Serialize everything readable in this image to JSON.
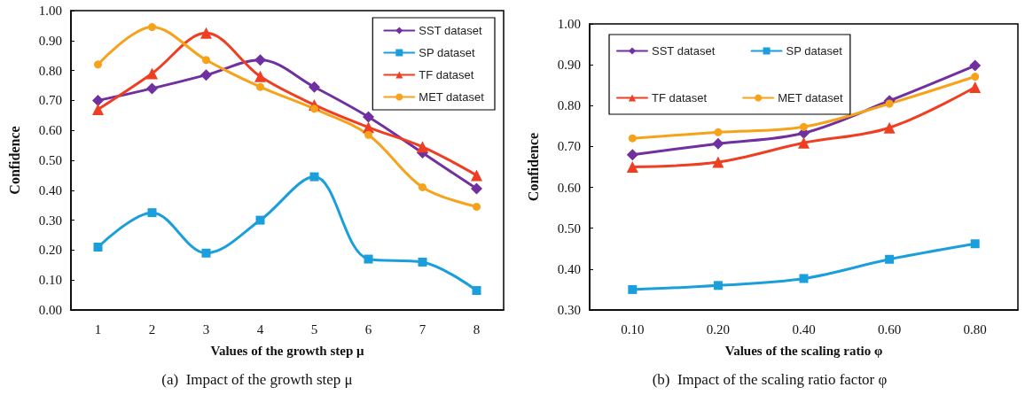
{
  "chart_data": [
    {
      "type": "line",
      "title": "(a)  Impact of the growth step μ",
      "xlabel": "Values of the growth step μ",
      "ylabel": "Confidence",
      "categories": [
        "1",
        "2",
        "3",
        "4",
        "5",
        "6",
        "7",
        "8"
      ],
      "ylim": [
        0,
        1
      ],
      "yticks": [
        {
          "value": 0,
          "label": "0.00"
        },
        {
          "value": 0.1,
          "label": "0.10"
        },
        {
          "value": 0.2,
          "label": "0.20"
        },
        {
          "value": 0.3,
          "label": "0.30"
        },
        {
          "value": 0.4,
          "label": "0.40"
        },
        {
          "value": 0.5,
          "label": "0.50"
        },
        {
          "value": 0.6,
          "label": "0.60"
        },
        {
          "value": 0.7,
          "label": "0.70"
        },
        {
          "value": 0.8,
          "label": "0.80"
        },
        {
          "value": 0.9,
          "label": "0.90"
        },
        {
          "value": 1,
          "label": "1.00"
        }
      ],
      "grid": false,
      "legend": "top right",
      "line_style": "solid",
      "series": [
        {
          "name": "SST dataset",
          "color": "#7030a0",
          "marker": "diamond",
          "values": [
            0.7,
            0.74,
            0.785,
            0.835,
            0.745,
            0.645,
            0.525,
            0.405
          ]
        },
        {
          "name": "SP dataset",
          "color": "#1a9fdc",
          "marker": "square",
          "values": [
            0.21,
            0.325,
            0.19,
            0.3,
            0.445,
            0.17,
            0.16,
            0.065
          ]
        },
        {
          "name": "TF dataset",
          "color": "#ee3f23",
          "marker": "triangle",
          "values": [
            0.67,
            0.79,
            0.925,
            0.78,
            0.685,
            0.61,
            0.545,
            0.45
          ]
        },
        {
          "name": "MET dataset",
          "color": "#f7a21b",
          "marker": "circle",
          "values": [
            0.82,
            0.945,
            0.835,
            0.745,
            0.672,
            0.585,
            0.41,
            0.345
          ]
        }
      ]
    },
    {
      "type": "line",
      "title": "(b)  Impact of the scaling ratio factor φ",
      "xlabel": "Values of the scaling ratio φ",
      "ylabel": "Confidence",
      "categories": [
        "0.10",
        "0.20",
        "0.40",
        "0.60",
        "0.80"
      ],
      "ylim": [
        0.3,
        1
      ],
      "yticks": [
        {
          "value": 0.3,
          "label": "0.30"
        },
        {
          "value": 0.4,
          "label": "0.40"
        },
        {
          "value": 0.5,
          "label": "0.50"
        },
        {
          "value": 0.6,
          "label": "0.60"
        },
        {
          "value": 0.7,
          "label": "0.70"
        },
        {
          "value": 0.8,
          "label": "0.80"
        },
        {
          "value": 0.9,
          "label": "0.90"
        },
        {
          "value": 1,
          "label": "1.00"
        }
      ],
      "grid": false,
      "legend": "top left",
      "line_style": "solid",
      "series": [
        {
          "name": "SST dataset",
          "color": "#7030a0",
          "marker": "diamond",
          "values": [
            0.68,
            0.707,
            0.733,
            0.812,
            0.898
          ]
        },
        {
          "name": "SP dataset",
          "color": "#1a9fdc",
          "marker": "square",
          "values": [
            0.35,
            0.36,
            0.377,
            0.424,
            0.462
          ]
        },
        {
          "name": "TF dataset",
          "color": "#ee3f23",
          "marker": "triangle",
          "values": [
            0.65,
            0.662,
            0.709,
            0.746,
            0.845
          ]
        },
        {
          "name": "MET dataset",
          "color": "#f7a21b",
          "marker": "circle",
          "values": [
            0.72,
            0.735,
            0.748,
            0.805,
            0.871
          ]
        }
      ]
    }
  ]
}
